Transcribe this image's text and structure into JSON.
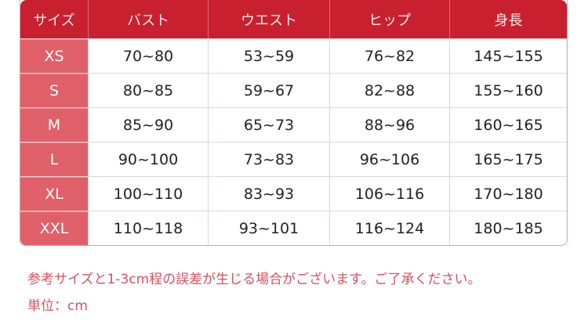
{
  "colors": {
    "header": "#c8202f",
    "size_column": "#e0606a",
    "note": "#d9505e"
  },
  "table": {
    "headers": [
      "サイズ",
      "バスト",
      "ウエスト",
      "ヒップ",
      "身長"
    ],
    "rows": [
      [
        "XS",
        "70~80",
        "53~59",
        "76~82",
        "145~155"
      ],
      [
        "S",
        "80~85",
        "59~67",
        "82~88",
        "155~160"
      ],
      [
        "M",
        "85~90",
        "65~73",
        "88~96",
        "160~165"
      ],
      [
        "L",
        "90~100",
        "73~83",
        "96~106",
        "165~175"
      ],
      [
        "XL",
        "100~110",
        "83~93",
        "106~116",
        "170~180"
      ],
      [
        "XXL",
        "110~118",
        "93~101",
        "116~124",
        "180~185"
      ]
    ]
  },
  "notes": {
    "disclaimer": "参考サイズと1-3cm程の誤差が生じる場合がございます。ご了承ください。",
    "unit": "単位：cm"
  }
}
